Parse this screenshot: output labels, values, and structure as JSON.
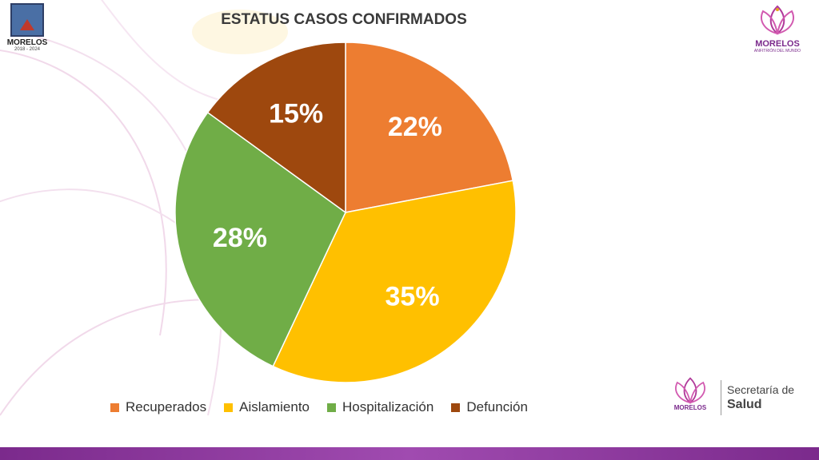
{
  "slide": {
    "title": "ESTATUS CASOS CONFIRMADOS",
    "colors": {
      "accent": "#7b2a8c",
      "band": "#7b2a8c"
    }
  },
  "logos": {
    "left": {
      "name": "MORELOS",
      "years": "2018 - 2024"
    },
    "right": {
      "brand": "MORELOS",
      "sub": "ANFITRIÓN DEL MUNDO"
    },
    "footer": {
      "brand": "MORELOS",
      "dept_line1": "Secretaría de",
      "dept_line2": "Salud"
    }
  },
  "chart_data": {
    "type": "pie",
    "title": "ESTATUS CASOS CONFIRMADOS",
    "categories": [
      "Recuperados",
      "Aislamiento",
      "Hospitalización",
      "Defunción"
    ],
    "values": [
      22,
      35,
      28,
      15
    ],
    "labels": [
      "22%",
      "35%",
      "28%",
      "15%"
    ],
    "colors": [
      "#ed7d31",
      "#ffc000",
      "#70ad47",
      "#9e480e"
    ],
    "start_angle_deg": 0,
    "direction": "clockwise",
    "legend_position": "bottom"
  }
}
